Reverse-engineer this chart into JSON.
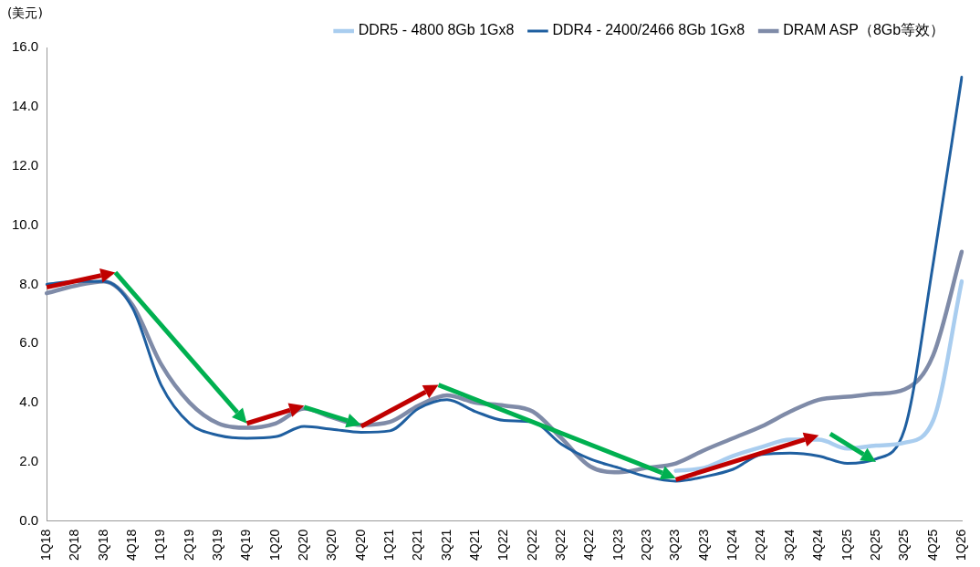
{
  "chart_data": {
    "type": "line",
    "ylabel": "(美元)",
    "legend": "top",
    "grid": false,
    "marker": "none",
    "line_style": "solid",
    "categories": [
      "1Q18",
      "2Q18",
      "3Q18",
      "4Q18",
      "1Q19",
      "2Q19",
      "3Q19",
      "4Q19",
      "1Q20",
      "2Q20",
      "3Q20",
      "4Q20",
      "1Q21",
      "2Q21",
      "3Q21",
      "4Q21",
      "1Q22",
      "2Q22",
      "3Q22",
      "4Q22",
      "1Q23",
      "2Q23",
      "3Q23",
      "4Q23",
      "1Q24",
      "2Q24",
      "3Q24",
      "4Q24",
      "1Q25",
      "2Q25",
      "3Q25",
      "4Q25",
      "1Q26"
    ],
    "ylim": [
      0,
      16
    ],
    "yticks": [
      {
        "value": 0,
        "label": "0.0"
      },
      {
        "value": 2,
        "label": "2.0"
      },
      {
        "value": 4,
        "label": "4.0"
      },
      {
        "value": 6,
        "label": "6.0"
      },
      {
        "value": 8,
        "label": "8.0"
      },
      {
        "value": 10,
        "label": "10.0"
      },
      {
        "value": 12,
        "label": "12.0"
      },
      {
        "value": 14,
        "label": "14.0"
      },
      {
        "value": 16,
        "label": "16.0"
      }
    ],
    "series": [
      {
        "name": "DDR5 - 4800 8Gb 1Gx8",
        "color": "#a9cdef",
        "values": [
          null,
          null,
          null,
          null,
          null,
          null,
          null,
          null,
          null,
          null,
          null,
          null,
          null,
          null,
          null,
          null,
          null,
          null,
          null,
          null,
          null,
          null,
          1.7,
          1.8,
          2.2,
          2.5,
          2.75,
          2.75,
          2.45,
          2.55,
          2.65,
          3.4,
          8.1
        ]
      },
      {
        "name": "DDR4 - 2400/2466 8Gb 1Gx8",
        "color": "#1f5fa0",
        "values": [
          8.0,
          8.1,
          8.1,
          7.2,
          4.6,
          3.3,
          2.9,
          2.8,
          2.85,
          3.2,
          3.1,
          3.0,
          3.05,
          3.8,
          4.1,
          3.7,
          3.4,
          3.35,
          2.6,
          2.1,
          1.8,
          1.5,
          1.35,
          1.5,
          1.75,
          2.25,
          2.3,
          2.2,
          1.95,
          2.1,
          3.1,
          8.7,
          15.0
        ]
      },
      {
        "name": "DRAM ASP（8Gb等效）",
        "color": "#7f8ba8",
        "values": [
          7.7,
          7.95,
          8.1,
          7.3,
          5.3,
          4.0,
          3.3,
          3.15,
          3.3,
          3.8,
          3.5,
          3.25,
          3.35,
          3.9,
          4.25,
          4.0,
          3.9,
          3.7,
          2.8,
          1.85,
          1.65,
          1.8,
          1.95,
          2.4,
          2.8,
          3.2,
          3.7,
          4.1,
          4.2,
          4.3,
          4.45,
          5.6,
          9.1
        ]
      }
    ]
  }
}
